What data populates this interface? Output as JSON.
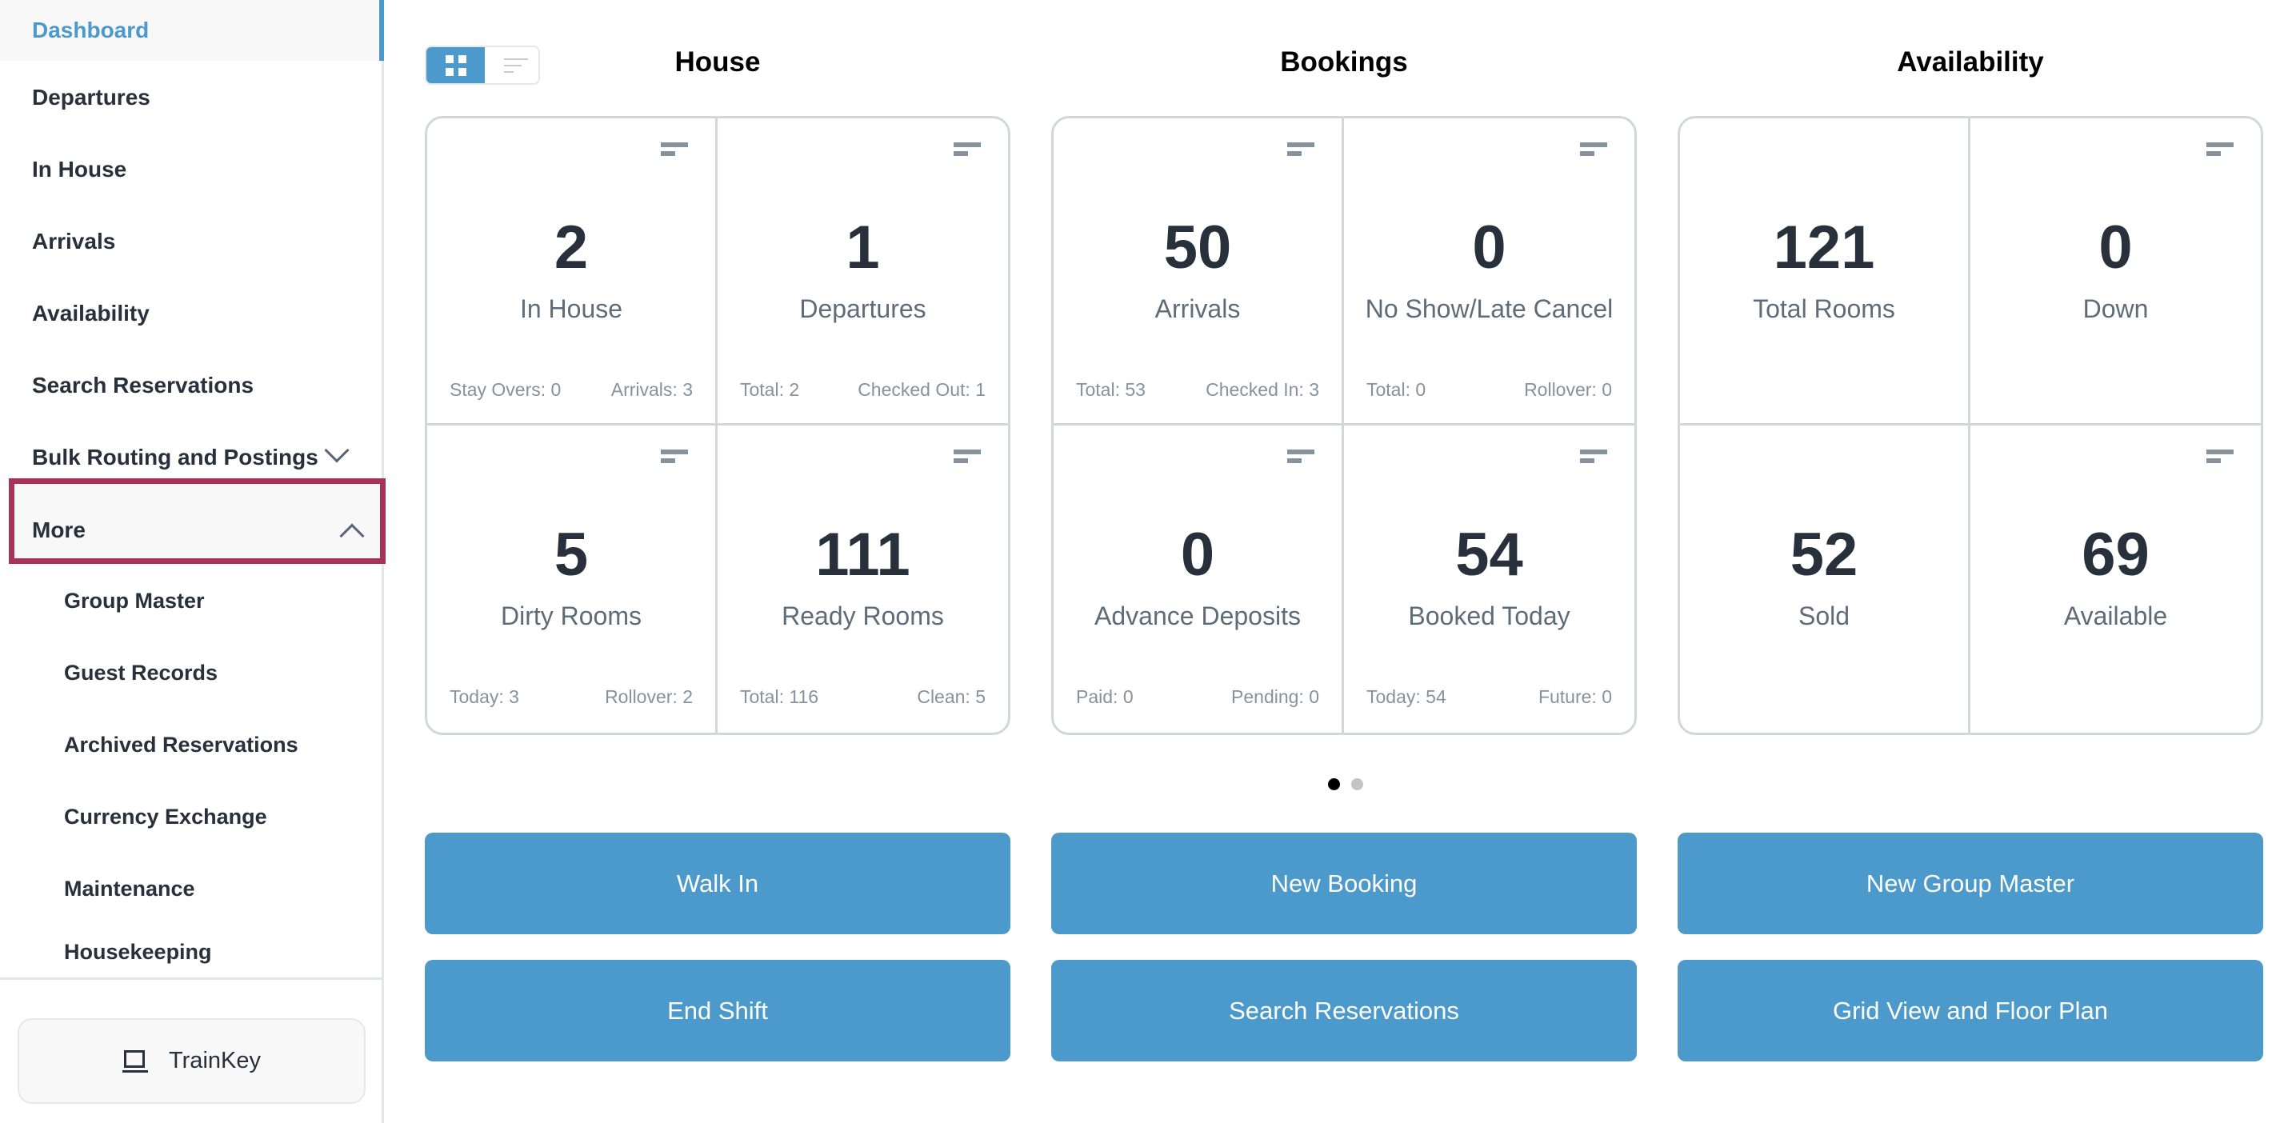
{
  "sidebar": {
    "items": [
      {
        "label": "Dashboard",
        "active": true
      },
      {
        "label": "Departures"
      },
      {
        "label": "In House"
      },
      {
        "label": "Arrivals"
      },
      {
        "label": "Availability"
      },
      {
        "label": "Search Reservations"
      },
      {
        "label": "Bulk Routing and Postings",
        "chevron": "chevron-down-icon"
      },
      {
        "label": "More",
        "chevron": "chevron-up-icon",
        "expanded": true
      }
    ],
    "sub_items": [
      {
        "label": "Group Master"
      },
      {
        "label": "Guest Records"
      },
      {
        "label": "Archived Reservations"
      },
      {
        "label": "Currency Exchange"
      },
      {
        "label": "Maintenance"
      },
      {
        "label": "Housekeeping"
      }
    ],
    "trainkey": {
      "label": "TrainKey",
      "icon": "laptop-icon"
    }
  },
  "view_toggle": {
    "selected": "grid",
    "options": [
      "grid-icon",
      "list-icon"
    ]
  },
  "sections": [
    {
      "title": "House",
      "cards": [
        {
          "value": "2",
          "label": "In House",
          "footer_left": "Stay Overs: 0",
          "footer_right": "Arrivals: 3"
        },
        {
          "value": "1",
          "label": "Departures",
          "footer_left": "Total: 2",
          "footer_right": "Checked Out: 1"
        },
        {
          "value": "5",
          "label": "Dirty Rooms",
          "footer_left": "Today: 3",
          "footer_right": "Rollover: 2"
        },
        {
          "value": "111",
          "label": "Ready Rooms",
          "footer_left": "Total: 116",
          "footer_right": "Clean: 5"
        }
      ]
    },
    {
      "title": "Bookings",
      "cards": [
        {
          "value": "50",
          "label": "Arrivals",
          "footer_left": "Total: 53",
          "footer_right": "Checked In: 3"
        },
        {
          "value": "0",
          "label": "No Show/Late Cancel",
          "footer_left": "Total: 0",
          "footer_right": "Rollover: 0"
        },
        {
          "value": "0",
          "label": "Advance Deposits",
          "footer_left": "Paid: 0",
          "footer_right": "Pending: 0"
        },
        {
          "value": "54",
          "label": "Booked Today",
          "footer_left": "Today: 54",
          "footer_right": "Future: 0"
        }
      ]
    },
    {
      "title": "Availability",
      "cards": [
        {
          "value": "121",
          "label": "Total Rooms",
          "menu": false
        },
        {
          "value": "0",
          "label": "Down"
        },
        {
          "value": "52",
          "label": "Sold",
          "menu": false
        },
        {
          "value": "69",
          "label": "Available"
        }
      ]
    }
  ],
  "pager": {
    "pages": 2,
    "current": 1
  },
  "actions": [
    [
      "Walk In",
      "New Booking",
      "New Group Master"
    ],
    [
      "End Shift",
      "Search Reservations",
      "Grid View and Floor Plan"
    ]
  ],
  "colors": {
    "accent": "#4c9acb",
    "highlight_box": "#a8335a",
    "text": "#27303b",
    "muted": "#86929c"
  }
}
